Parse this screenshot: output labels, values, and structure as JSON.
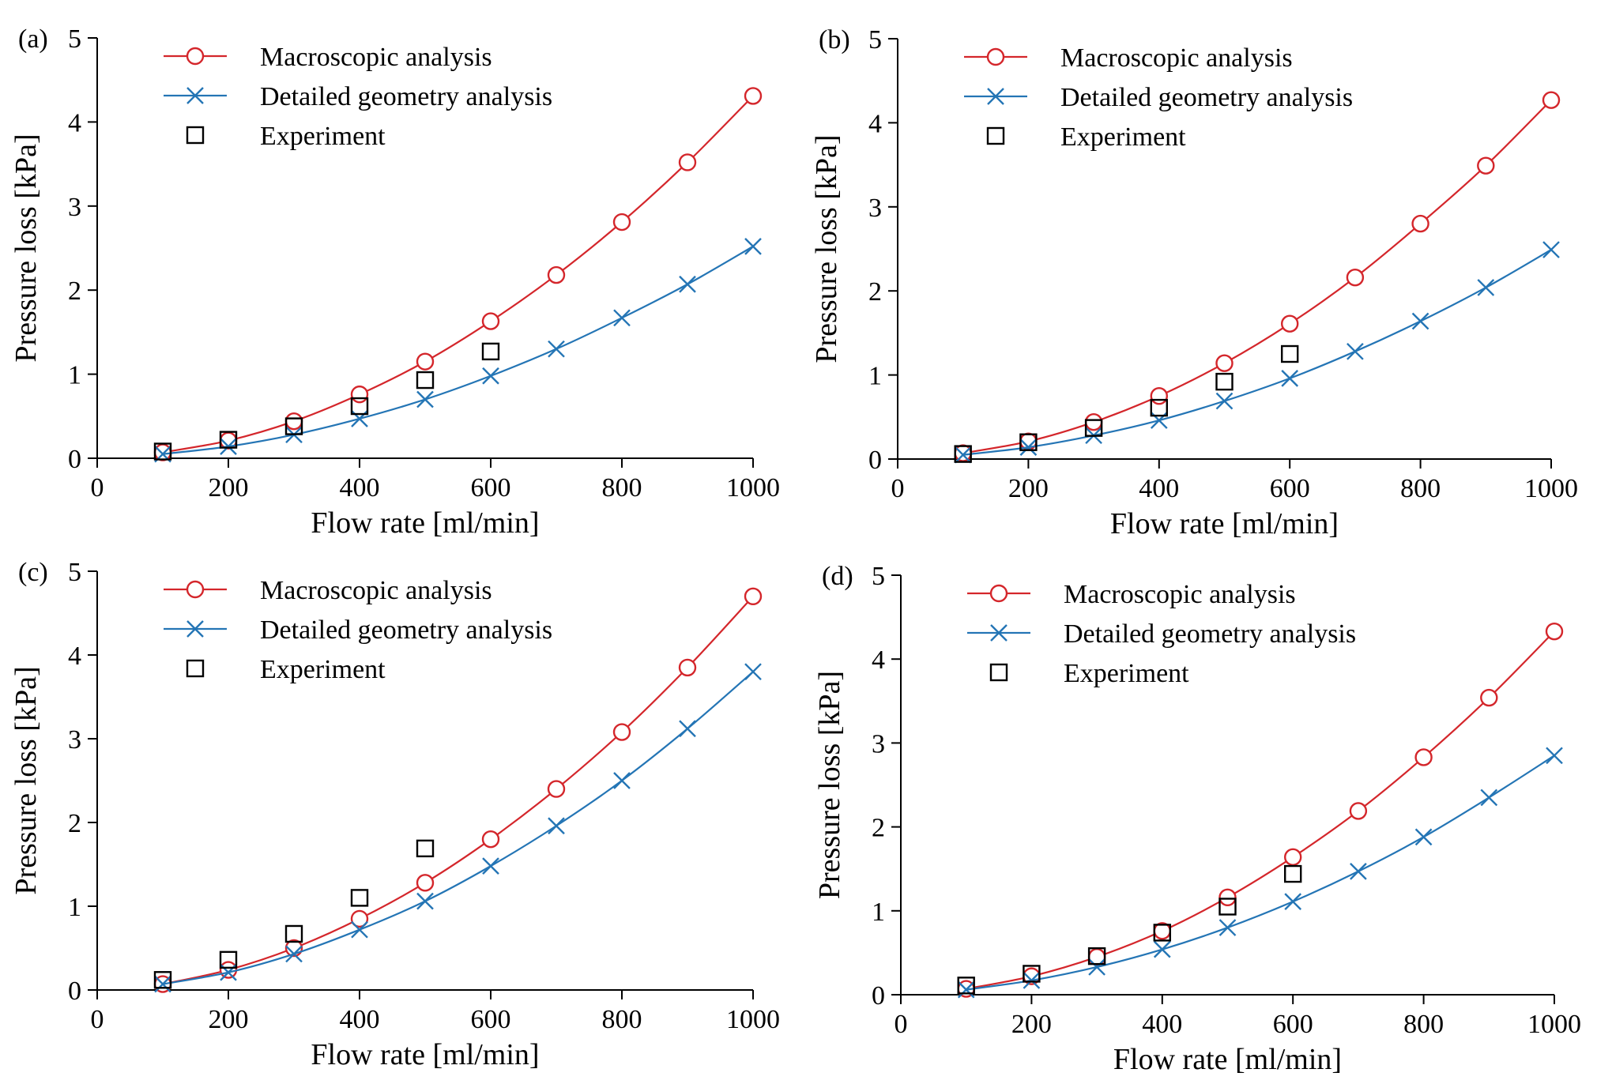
{
  "figure": {
    "colors": {
      "macro": "#d4262b",
      "detail": "#2475b5",
      "experiment": "#000000",
      "axis": "#000000"
    }
  },
  "chart_data": [
    {
      "type": "line",
      "panel_label": "(a)",
      "xlabel": "Flow rate [ml/min]",
      "ylabel": "Pressure loss [kPa]",
      "xlim": [
        0,
        1000
      ],
      "ylim": [
        0,
        5
      ],
      "xticks": [
        "0",
        "200",
        "400",
        "600",
        "800",
        "1000"
      ],
      "yticks": [
        "0",
        "1",
        "2",
        "3",
        "4",
        "5"
      ],
      "legend_position": "top-left",
      "series": [
        {
          "name": "Macroscopic analysis",
          "marker": "circle",
          "line": true,
          "x": [
            100,
            200,
            300,
            400,
            500,
            600,
            700,
            800,
            900,
            1000
          ],
          "y": [
            0.07,
            0.21,
            0.44,
            0.76,
            1.15,
            1.63,
            2.18,
            2.81,
            3.52,
            4.31
          ]
        },
        {
          "name": "Detailed geometry analysis",
          "marker": "x",
          "line": true,
          "x": [
            100,
            200,
            300,
            400,
            500,
            600,
            700,
            800,
            900,
            1000
          ],
          "y": [
            0.05,
            0.14,
            0.28,
            0.47,
            0.7,
            0.98,
            1.3,
            1.67,
            2.07,
            2.52
          ]
        },
        {
          "name": "Experiment",
          "marker": "square",
          "line": false,
          "x": [
            100,
            200,
            300,
            400,
            500,
            600
          ],
          "y": [
            0.08,
            0.22,
            0.38,
            0.62,
            0.93,
            1.27
          ]
        }
      ]
    },
    {
      "type": "line",
      "panel_label": "(b)",
      "xlabel": "Flow rate [ml/min]",
      "ylabel": "Pressure loss [kPa]",
      "xlim": [
        0,
        1000
      ],
      "ylim": [
        0,
        5
      ],
      "xticks": [
        "0",
        "200",
        "400",
        "600",
        "800",
        "1000"
      ],
      "yticks": [
        "0",
        "1",
        "2",
        "3",
        "4",
        "5"
      ],
      "legend_position": "top-left",
      "series": [
        {
          "name": "Macroscopic analysis",
          "marker": "circle",
          "line": true,
          "x": [
            100,
            200,
            300,
            400,
            500,
            600,
            700,
            800,
            900,
            1000
          ],
          "y": [
            0.07,
            0.21,
            0.44,
            0.75,
            1.14,
            1.61,
            2.16,
            2.8,
            3.49,
            4.27
          ]
        },
        {
          "name": "Detailed geometry analysis",
          "marker": "x",
          "line": true,
          "x": [
            100,
            200,
            300,
            400,
            500,
            600,
            700,
            800,
            900,
            1000
          ],
          "y": [
            0.05,
            0.14,
            0.28,
            0.46,
            0.69,
            0.96,
            1.28,
            1.64,
            2.04,
            2.49
          ]
        },
        {
          "name": "Experiment",
          "marker": "square",
          "line": false,
          "x": [
            100,
            200,
            300,
            400,
            500,
            600
          ],
          "y": [
            0.06,
            0.2,
            0.37,
            0.61,
            0.92,
            1.25
          ]
        }
      ]
    },
    {
      "type": "line",
      "panel_label": "(c)",
      "xlabel": "Flow rate [ml/min]",
      "ylabel": "Pressure loss [kPa]",
      "xlim": [
        0,
        1000
      ],
      "ylim": [
        0,
        5
      ],
      "xticks": [
        "0",
        "200",
        "400",
        "600",
        "800",
        "1000"
      ],
      "yticks": [
        "0",
        "1",
        "2",
        "3",
        "4",
        "5"
      ],
      "legend_position": "top-left",
      "series": [
        {
          "name": "Macroscopic analysis",
          "marker": "circle",
          "line": true,
          "x": [
            100,
            200,
            300,
            400,
            500,
            600,
            700,
            800,
            900,
            1000
          ],
          "y": [
            0.07,
            0.24,
            0.5,
            0.85,
            1.28,
            1.8,
            2.4,
            3.08,
            3.85,
            4.7
          ]
        },
        {
          "name": "Detailed geometry analysis",
          "marker": "x",
          "line": true,
          "x": [
            100,
            200,
            300,
            400,
            500,
            600,
            700,
            800,
            900,
            1000
          ],
          "y": [
            0.07,
            0.21,
            0.43,
            0.72,
            1.06,
            1.48,
            1.96,
            2.5,
            3.12,
            3.8
          ]
        },
        {
          "name": "Experiment",
          "marker": "square",
          "line": false,
          "x": [
            100,
            200,
            300,
            400,
            500
          ],
          "y": [
            0.12,
            0.36,
            0.67,
            1.1,
            1.69
          ]
        }
      ]
    },
    {
      "type": "line",
      "panel_label": "(d)",
      "xlabel": "Flow rate [ml/min]",
      "ylabel": "Pressure loss [kPa]",
      "xlim": [
        0,
        1000
      ],
      "ylim": [
        0,
        5
      ],
      "xticks": [
        "0",
        "200",
        "400",
        "600",
        "800",
        "1000"
      ],
      "yticks": [
        "0",
        "1",
        "2",
        "3",
        "4",
        "5"
      ],
      "legend_position": "top-left",
      "series": [
        {
          "name": "Macroscopic analysis",
          "marker": "circle",
          "line": true,
          "x": [
            100,
            200,
            300,
            400,
            500,
            600,
            700,
            800,
            900,
            1000
          ],
          "y": [
            0.07,
            0.22,
            0.45,
            0.76,
            1.16,
            1.64,
            2.19,
            2.83,
            3.54,
            4.33
          ]
        },
        {
          "name": "Detailed geometry analysis",
          "marker": "x",
          "line": true,
          "x": [
            100,
            200,
            300,
            400,
            500,
            600,
            700,
            800,
            900,
            1000
          ],
          "y": [
            0.06,
            0.17,
            0.33,
            0.54,
            0.8,
            1.11,
            1.47,
            1.88,
            2.35,
            2.85
          ]
        },
        {
          "name": "Experiment",
          "marker": "square",
          "line": false,
          "x": [
            100,
            200,
            300,
            400,
            500,
            600
          ],
          "y": [
            0.11,
            0.25,
            0.46,
            0.74,
            1.05,
            1.44
          ]
        }
      ]
    }
  ]
}
